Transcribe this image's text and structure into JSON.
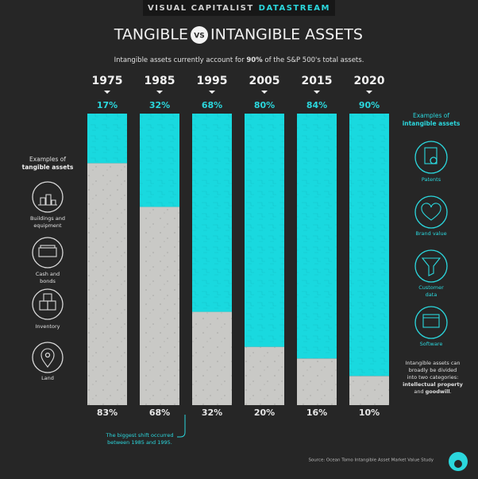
{
  "banner": {
    "brand": "VISUAL CAPITALIST",
    "product": "DATASTREAM"
  },
  "chart_data": {
    "type": "stacked-bar",
    "title_left": "TANGIBLE",
    "title_vs": "VS",
    "title_right": "INTANGIBLE ASSETS",
    "subtitle": [
      {
        "text": "Intangible assets currently account for ",
        "bold": false
      },
      {
        "text": "90%",
        "bold": true
      },
      {
        "text": " of the S&P 500's total assets.",
        "bold": false
      }
    ],
    "categories": [
      "1975",
      "1985",
      "1995",
      "2005",
      "2015",
      "2020"
    ],
    "series": [
      {
        "color": "#c9c9c6",
        "label_color": "#e6e6e6",
        "values": [
          83,
          68,
          32,
          20,
          16,
          10
        ],
        "value_labels": [
          "83%",
          "68%",
          "32%",
          "20%",
          "16%",
          "10%"
        ]
      },
      {
        "color": "#19d9df",
        "label_color": "#2bd7dd",
        "values": [
          17,
          32,
          68,
          80,
          84,
          90
        ],
        "value_labels": [
          "17%",
          "32%",
          "68%",
          "80%",
          "84%",
          "90%"
        ]
      }
    ],
    "ylim": [
      0,
      100
    ],
    "annotation": [
      "The biggest shift occurred",
      "between 1985 and 1995."
    ],
    "source": "Source: Ocean Tomo Intangible Asset Market Value Study"
  },
  "left_panel": {
    "heading": [
      {
        "text": "Examples of",
        "bold": false
      },
      {
        "text": "tangible assets",
        "bold": true
      }
    ],
    "items": [
      [
        "Buildings and",
        "equipment"
      ],
      [
        "Cash and",
        "bonds"
      ],
      [
        "Inventory"
      ],
      [
        "Land"
      ]
    ]
  },
  "right_panel": {
    "heading": [
      {
        "text": "Examples of",
        "bold": false
      },
      {
        "text": "intangible assets",
        "bold": true
      }
    ],
    "items": [
      [
        "Patents"
      ],
      [
        "Brand value"
      ],
      [
        "Customer",
        "data"
      ],
      [
        "Software"
      ]
    ],
    "note": [
      [
        {
          "text": "Intangible assets can",
          "bold": false
        }
      ],
      [
        {
          "text": "broadly be divided",
          "bold": false
        }
      ],
      [
        {
          "text": "into two categories:",
          "bold": false
        }
      ],
      [
        {
          "text": "intellectual property",
          "bold": true
        }
      ],
      [
        {
          "text": "and ",
          "bold": false
        },
        {
          "text": "goodwill",
          "bold": true
        },
        {
          "text": ".",
          "bold": false
        }
      ]
    ]
  }
}
